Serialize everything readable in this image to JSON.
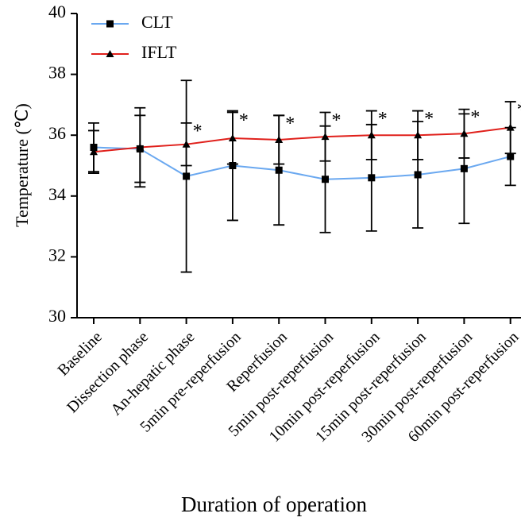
{
  "chart_data": {
    "type": "line",
    "x_label": "Duration of operation",
    "y_label": "Temperature (℃)",
    "categories": [
      "Baseline",
      "Dissection phase",
      "An-hepatic phase",
      "5min pre-reperfusion",
      "Reperfusion",
      "5min post-reperfusion",
      "10min post-reperfusion",
      "15min post-reperfusion",
      "30min post-reperfusion",
      "60min post-reperfusion"
    ],
    "series": [
      {
        "name": "CLT",
        "color": "#6aa8f0",
        "marker": "square",
        "values": [
          35.6,
          35.55,
          34.65,
          35.0,
          34.85,
          34.55,
          34.6,
          34.7,
          34.9,
          35.3
        ],
        "errors": [
          0.8,
          1.1,
          3.15,
          1.8,
          1.8,
          1.75,
          1.75,
          1.75,
          1.8,
          0.95
        ]
      },
      {
        "name": "IFLT",
        "color": "#e0201b",
        "marker": "triangle",
        "values": [
          35.45,
          35.6,
          35.7,
          35.9,
          35.85,
          35.95,
          36.0,
          36.0,
          36.05,
          36.25
        ],
        "errors": [
          0.7,
          1.3,
          0.7,
          0.85,
          0.8,
          0.8,
          0.8,
          0.8,
          0.8,
          0.85
        ]
      }
    ],
    "annotations": [
      null,
      null,
      "*",
      "*",
      "*",
      "*",
      "*",
      "*",
      "*",
      "*"
    ],
    "ylim": [
      30,
      40
    ],
    "yticks": [
      30,
      32,
      34,
      36,
      38,
      40
    ],
    "legend": "top-left"
  }
}
